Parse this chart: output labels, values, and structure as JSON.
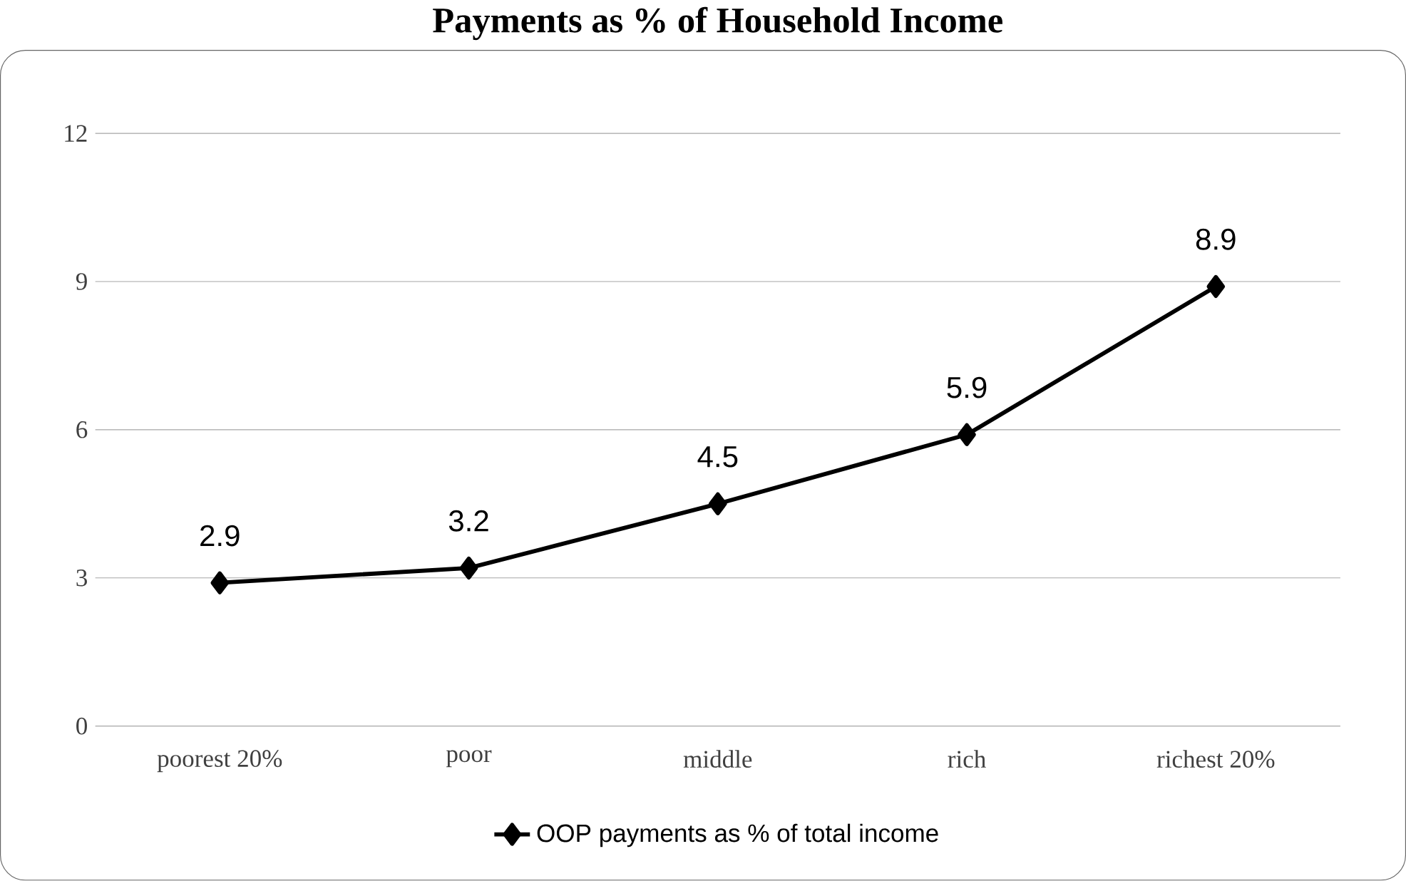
{
  "chart_data": {
    "type": "line",
    "title": "Payments as % of Household Income",
    "categories": [
      "poorest 20%",
      "poor",
      "middle",
      "rich",
      "richest 20%"
    ],
    "series": [
      {
        "name": "OOP payments as % of total income",
        "color": "#000000",
        "values": [
          2.9,
          3.2,
          4.5,
          5.9,
          8.9
        ]
      }
    ],
    "ylim": [
      0,
      12
    ],
    "yticks": [
      0,
      3,
      6,
      9,
      12
    ],
    "grid": "y",
    "legend": "bottom",
    "marker": "diamond",
    "line_style": "solid",
    "data_labels": true
  }
}
